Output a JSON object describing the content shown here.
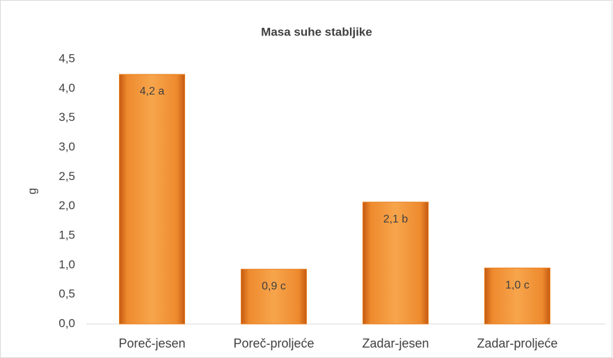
{
  "chart_data": {
    "type": "bar",
    "title": "Masa suhe stabljike",
    "y_label": "g",
    "categories": [
      "Poreč-jesen",
      "Poreč-proljeće",
      "Zadar-jesen",
      "Zadar-proljeće"
    ],
    "values": [
      4.24,
      0.93,
      2.07,
      0.95
    ],
    "value_labels": [
      "4,2 a",
      "0,9 c",
      "2,1 b",
      "1,0 c"
    ],
    "color": "#e87f1e",
    "ylim": [
      0,
      4.5
    ],
    "yticks": [
      {
        "value": 0,
        "label": "0,0"
      },
      {
        "value": 0.5,
        "label": "0,5"
      },
      {
        "value": 1,
        "label": "1,0"
      },
      {
        "value": 1.5,
        "label": "1,5"
      },
      {
        "value": 2,
        "label": "2,0"
      },
      {
        "value": 2.5,
        "label": "2,5"
      },
      {
        "value": 3,
        "label": "3,0"
      },
      {
        "value": 3.5,
        "label": "3,5"
      },
      {
        "value": 4,
        "label": "4,0"
      },
      {
        "value": 4.5,
        "label": "4,5"
      }
    ],
    "grid": false
  }
}
